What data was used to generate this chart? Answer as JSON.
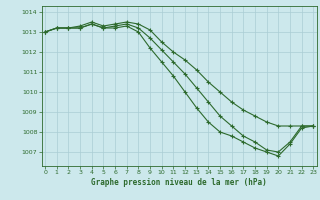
{
  "xlabel": "Graphe pression niveau de la mer (hPa)",
  "bg_color": "#cce8ec",
  "line_color": "#2d6a2d",
  "grid_color": "#aacdd4",
  "x_ticks": [
    0,
    1,
    2,
    3,
    4,
    5,
    6,
    7,
    8,
    9,
    10,
    11,
    12,
    13,
    14,
    15,
    16,
    17,
    18,
    19,
    20,
    21,
    22,
    23
  ],
  "ylim": [
    1006.3,
    1014.3
  ],
  "yticks": [
    1007,
    1008,
    1009,
    1010,
    1011,
    1012,
    1013,
    1014
  ],
  "line1": [
    1013.0,
    1013.2,
    1013.2,
    1013.3,
    1013.5,
    1013.3,
    1013.4,
    1013.5,
    1013.4,
    1013.1,
    1012.5,
    1012.0,
    1011.6,
    1011.1,
    1010.5,
    1010.0,
    1009.5,
    1009.1,
    1008.8,
    1008.5,
    1008.3,
    1008.3,
    1008.3,
    1008.3
  ],
  "line2": [
    1013.0,
    1013.2,
    1013.2,
    1013.2,
    1013.4,
    1013.2,
    1013.3,
    1013.4,
    1013.2,
    1012.7,
    1012.1,
    1011.5,
    1010.9,
    1010.2,
    1009.5,
    1008.8,
    1008.3,
    1007.8,
    1007.5,
    1007.1,
    1007.0,
    1007.5,
    1008.3,
    1008.3
  ],
  "line3": [
    1013.0,
    1013.2,
    1013.2,
    1013.2,
    1013.4,
    1013.2,
    1013.2,
    1013.3,
    1013.0,
    1012.2,
    1011.5,
    1010.8,
    1010.0,
    1009.2,
    1008.5,
    1008.0,
    1007.8,
    1007.5,
    1007.2,
    1007.0,
    1006.8,
    1007.4,
    1008.2,
    1008.3
  ]
}
